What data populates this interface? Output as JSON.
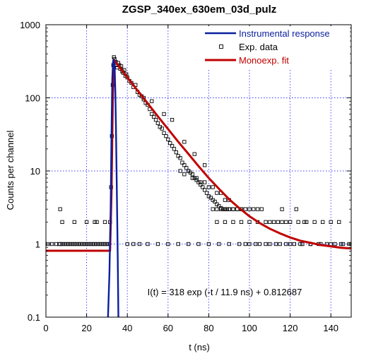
{
  "chart_data": {
    "type": "scatter",
    "title": "ZGSP_340ex_630em_03d_pulz",
    "xlabel": "t (ns)",
    "ylabel": "Counts per channel",
    "xlim": [
      0,
      150
    ],
    "ylim": [
      0.1,
      1000
    ],
    "yscale": "log",
    "grid": true,
    "legend_position": "top-right",
    "x_ticks": [
      {
        "value": 0,
        "label": "0"
      },
      {
        "value": 20,
        "label": "20"
      },
      {
        "value": 40,
        "label": "40"
      },
      {
        "value": 60,
        "label": "60"
      },
      {
        "value": 80,
        "label": "80"
      },
      {
        "value": 100,
        "label": "100"
      },
      {
        "value": 120,
        "label": "120"
      },
      {
        "value": 140,
        "label": "140"
      }
    ],
    "y_ticks": [
      {
        "value": 0.1,
        "label": "0.1"
      },
      {
        "value": 1,
        "label": "1"
      },
      {
        "value": 10,
        "label": "10"
      },
      {
        "value": 100,
        "label": "100"
      },
      {
        "value": 1000,
        "label": "1000"
      }
    ],
    "annotation": "I(t) = 318 exp (-t / 11.9 ns) + 0.812687",
    "series": [
      {
        "name": "Instrumental response",
        "kind": "line",
        "color": "#0a1f9e",
        "x": [
          30.5,
          31.2,
          31.8,
          32.2,
          32.6,
          33.0,
          33.4,
          33.8,
          34.1,
          34.4,
          34.7,
          35.0,
          35.3,
          35.6
        ],
        "y": [
          0.1,
          0.4,
          3.0,
          30,
          180,
          320,
          330,
          250,
          120,
          40,
          10,
          2.5,
          0.6,
          0.1
        ]
      },
      {
        "name": "Exp. data",
        "kind": "scatter",
        "color": "#000000",
        "x": [
          1,
          3,
          5,
          6.5,
          7,
          8,
          9,
          10,
          11,
          12,
          13,
          14,
          15,
          16,
          17,
          18,
          19,
          20,
          21,
          22,
          23,
          24,
          25,
          26,
          27,
          28,
          29,
          30,
          31,
          7,
          8,
          14,
          20,
          24,
          25,
          29,
          31.5,
          32,
          32.4,
          32.8,
          33.1,
          33.4,
          33.7,
          34,
          34.3,
          34.6,
          35,
          35.5,
          36,
          36.5,
          37,
          37.5,
          38,
          38.5,
          39,
          39.5,
          40,
          41,
          42,
          43,
          44,
          45,
          46,
          47,
          48,
          49,
          50,
          51,
          52,
          53,
          54,
          55,
          56,
          57,
          58,
          59,
          60,
          61,
          62,
          63,
          64,
          65,
          66,
          67,
          68,
          69,
          70,
          71,
          72,
          73,
          74,
          75,
          76,
          77,
          78,
          79,
          80,
          81,
          82,
          83,
          84,
          85,
          86,
          87,
          88,
          89,
          90,
          66,
          68,
          70,
          72,
          74,
          76,
          78,
          80,
          82,
          84,
          86,
          88,
          90,
          92,
          94,
          96,
          82,
          84,
          86,
          88,
          90,
          92,
          94,
          96,
          98,
          100,
          102,
          104,
          106,
          110,
          114,
          116,
          118,
          123,
          127,
          84,
          88,
          92,
          96,
          100,
          104,
          108,
          112,
          116,
          120,
          124,
          128,
          132,
          136,
          140,
          144,
          40,
          43,
          46,
          50,
          55,
          60,
          65,
          70,
          75,
          80,
          85,
          90,
          95,
          100,
          105,
          110,
          115,
          120,
          125,
          130,
          135,
          140,
          145,
          150,
          48,
          52,
          58,
          62,
          68,
          73,
          78,
          98,
          103,
          108,
          113,
          118,
          122,
          126,
          130,
          134,
          138,
          142,
          146,
          149
        ],
        "y": [
          1,
          1,
          1,
          1,
          1,
          1,
          1,
          1,
          1,
          1,
          1,
          1,
          1,
          1,
          1,
          1,
          1,
          1,
          1,
          1,
          1,
          1,
          1,
          1,
          1,
          1,
          1,
          1,
          1,
          3,
          2,
          2,
          2,
          2,
          2,
          2,
          2,
          6,
          30,
          150,
          280,
          360,
          340,
          300,
          310,
          280,
          260,
          300,
          280,
          250,
          270,
          230,
          220,
          240,
          200,
          210,
          190,
          170,
          160,
          140,
          150,
          120,
          110,
          105,
          95,
          85,
          80,
          70,
          60,
          55,
          50,
          45,
          40,
          38,
          33,
          30,
          27,
          24,
          22,
          20,
          18,
          16,
          15,
          13,
          12,
          11,
          10,
          9.5,
          9,
          8,
          7.5,
          7,
          6.5,
          6,
          5.5,
          5,
          4.5,
          4.3,
          4,
          3.8,
          3.5,
          3.3,
          3.1,
          3,
          3,
          3,
          3,
          10,
          9,
          10,
          8,
          8,
          7,
          7,
          6,
          6,
          5,
          5,
          4,
          4,
          3,
          3,
          3,
          3,
          3,
          3,
          3,
          3,
          3,
          3,
          3,
          3,
          3,
          3,
          3,
          3,
          2,
          2,
          3,
          2,
          3,
          2,
          2,
          2,
          2,
          2,
          2,
          2,
          2,
          2,
          2,
          2,
          2,
          2,
          2,
          2,
          2,
          2,
          1,
          1,
          1,
          1,
          1,
          1,
          1,
          1,
          1,
          1,
          1,
          1,
          1,
          1,
          1,
          1,
          1,
          1,
          1,
          1,
          1,
          1,
          1,
          1,
          100,
          90,
          60,
          50,
          25,
          17,
          12,
          1,
          1,
          1,
          1,
          1,
          1,
          1,
          1,
          1,
          1,
          1,
          1,
          1
        ]
      },
      {
        "name": "Monoexp. fit",
        "kind": "line",
        "color": "#c00000",
        "x": [
          0,
          30,
          31.5,
          32.2,
          32.8,
          33.3,
          34,
          36,
          40,
          45,
          50,
          55,
          60,
          65,
          70,
          75,
          80,
          85,
          90,
          95,
          100,
          105,
          110,
          115,
          120,
          125,
          130,
          135,
          140,
          145,
          150
        ],
        "y": [
          0.81,
          0.81,
          0.81,
          5,
          80,
          330,
          315,
          267,
          190,
          126,
          84,
          55.7,
          37.4,
          25.1,
          17.1,
          11.6,
          8.0,
          5.7,
          4.1,
          3.1,
          2.4,
          1.94,
          1.62,
          1.4,
          1.23,
          1.11,
          1.04,
          0.97,
          0.93,
          0.89,
          0.87
        ]
      }
    ]
  }
}
